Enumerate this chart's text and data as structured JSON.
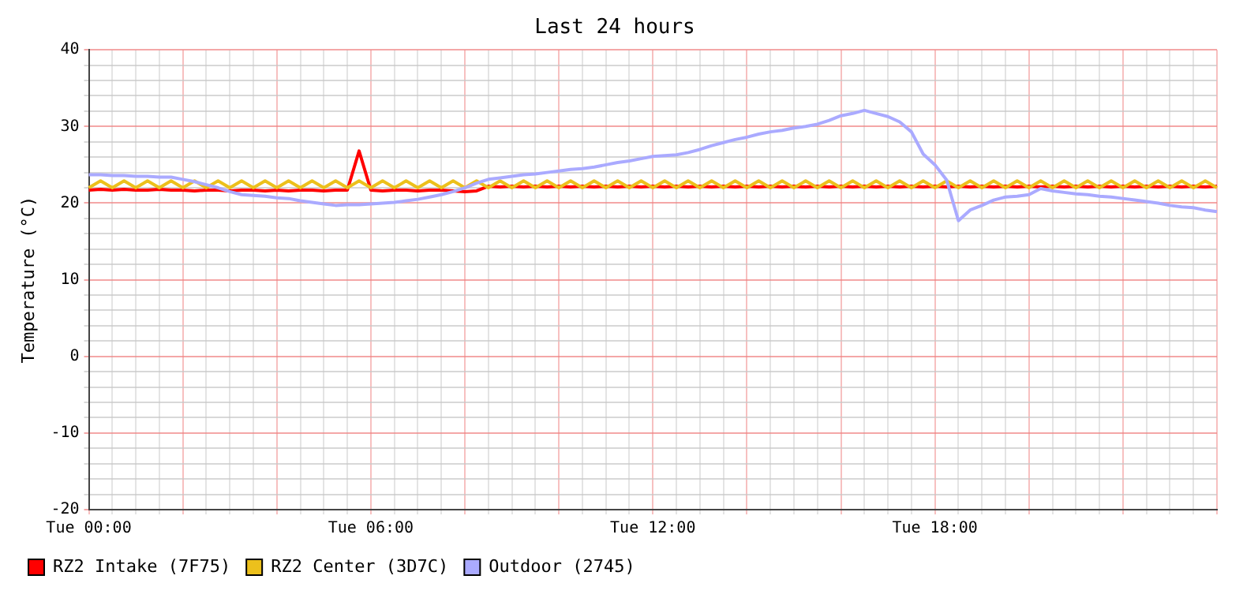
{
  "chart_data": {
    "type": "line",
    "title": "Last 24 hours",
    "ylabel": "Temperature (°C)",
    "categories": [
      "Tue 00:00",
      null,
      null,
      null,
      null,
      null,
      null,
      null,
      null,
      null,
      null,
      null,
      null,
      null,
      null,
      null,
      null,
      null,
      null,
      null,
      null,
      null,
      null,
      null,
      "Tue 06:00",
      null,
      null,
      null,
      null,
      null,
      null,
      null,
      null,
      null,
      null,
      null,
      null,
      null,
      null,
      null,
      null,
      null,
      null,
      null,
      null,
      null,
      null,
      null,
      "Tue 12:00",
      null,
      null,
      null,
      null,
      null,
      null,
      null,
      null,
      null,
      null,
      null,
      null,
      null,
      null,
      null,
      null,
      null,
      null,
      null,
      null,
      null,
      null,
      null,
      "Tue 18:00",
      null,
      null,
      null,
      null,
      null,
      null,
      null,
      null,
      null,
      null,
      null,
      null,
      null,
      null,
      null,
      null,
      null,
      null,
      null,
      null,
      null,
      null,
      null,
      null
    ],
    "ylim": [
      -20,
      40
    ],
    "yticks": [
      -20,
      {
        "value": -18,
        "label": null
      },
      {
        "value": -16,
        "label": null
      },
      {
        "value": -14,
        "label": null
      },
      {
        "value": -12,
        "label": null
      },
      -10,
      {
        "value": -8,
        "label": null
      },
      {
        "value": -6,
        "label": null
      },
      {
        "value": -4,
        "label": null
      },
      {
        "value": -2,
        "label": null
      },
      0,
      {
        "value": 2,
        "label": null
      },
      {
        "value": 4,
        "label": null
      },
      {
        "value": 6,
        "label": null
      },
      {
        "value": 8,
        "label": null
      },
      10,
      {
        "value": 12,
        "label": null
      },
      {
        "value": 14,
        "label": null
      },
      {
        "value": 16,
        "label": null
      },
      {
        "value": 18,
        "label": null
      },
      20,
      {
        "value": 22,
        "label": null
      },
      {
        "value": 24,
        "label": null
      },
      {
        "value": 26,
        "label": null
      },
      {
        "value": 28,
        "label": null
      },
      30,
      {
        "value": 32,
        "label": null
      },
      {
        "value": 34,
        "label": null
      },
      {
        "value": 36,
        "label": null
      },
      {
        "value": 38,
        "label": null
      },
      40
    ],
    "grid": true,
    "legend": "bottom left",
    "marker": "none",
    "line_style": "solid",
    "series": [
      {
        "name": "RZ2 Intake (7F75)",
        "color": "#ff0000",
        "values": [
          21.7,
          21.8,
          21.7,
          21.8,
          21.7,
          21.7,
          21.8,
          21.7,
          21.7,
          21.6,
          21.7,
          21.7,
          21.6,
          21.7,
          21.7,
          21.6,
          21.7,
          21.6,
          21.7,
          21.7,
          21.6,
          21.7,
          21.7,
          26.8,
          21.7,
          21.6,
          21.7,
          21.7,
          21.6,
          21.7,
          21.7,
          21.6,
          21.5,
          21.6,
          22.2,
          22.1,
          22.2,
          22.1,
          22.2,
          22.1,
          22.2,
          22.1,
          22.2,
          22.1,
          22.2,
          22.1,
          22.2,
          22.1,
          22.2,
          22.1,
          22.2,
          22.1,
          22.2,
          22.1,
          22.2,
          22.1,
          22.2,
          22.1,
          22.2,
          22.1,
          22.2,
          22.1,
          22.2,
          22.1,
          22.2,
          22.1,
          22.2,
          22.1,
          22.2,
          22.1,
          22.2,
          22.1,
          22.2,
          22.1,
          22.2,
          22.1,
          22.2,
          22.1,
          22.2,
          22.1,
          22.2,
          22.1,
          22.2,
          22.1,
          22.2,
          22.1,
          22.2,
          22.1,
          22.2,
          22.1,
          22.2,
          22.1,
          22.2,
          22.1,
          22.2,
          22.1,
          22.2
        ]
      },
      {
        "name": "RZ2 Center (3D7C)",
        "color": "#ecc01c",
        "values": [
          22,
          22.9,
          22,
          22.9,
          22,
          22.9,
          22,
          22.9,
          22,
          22.9,
          22,
          22.9,
          22,
          22.9,
          22,
          22.9,
          22,
          22.9,
          22,
          22.9,
          22,
          22.9,
          22,
          22.9,
          22,
          22.9,
          22,
          22.9,
          22,
          22.9,
          22,
          22.9,
          22,
          22.9,
          22,
          22.9,
          22,
          22.9,
          22,
          22.9,
          22,
          22.9,
          22,
          22.9,
          22,
          22.9,
          22,
          22.9,
          22,
          22.9,
          22,
          22.9,
          22,
          22.9,
          22,
          22.9,
          22,
          22.9,
          22,
          22.9,
          22,
          22.9,
          22,
          22.9,
          22,
          22.9,
          22,
          22.9,
          22,
          22.9,
          22,
          22.9,
          22,
          22.9,
          22,
          22.9,
          22,
          22.9,
          22,
          22.9,
          22,
          22.9,
          22,
          22.9,
          22,
          22.9,
          22,
          22.9,
          22,
          22.9,
          22,
          22.9,
          22,
          22.9,
          22,
          22.9,
          22
        ]
      },
      {
        "name": "Outdoor (2745)",
        "color": "#aaaaff",
        "values": [
          23.7,
          23.7,
          23.6,
          23.6,
          23.5,
          23.5,
          23.4,
          23.4,
          23.1,
          22.8,
          22.4,
          22.0,
          21.5,
          21.1,
          21.0,
          20.9,
          20.7,
          20.6,
          20.3,
          20.1,
          19.9,
          19.7,
          19.8,
          19.8,
          19.9,
          20.0,
          20.1,
          20.3,
          20.5,
          20.8,
          21.1,
          21.5,
          22.0,
          22.6,
          23.1,
          23.3,
          23.5,
          23.7,
          23.8,
          24.0,
          24.2,
          24.4,
          24.5,
          24.7,
          25.0,
          25.3,
          25.5,
          25.8,
          26.1,
          26.2,
          26.3,
          26.6,
          27.0,
          27.5,
          27.9,
          28.3,
          28.6,
          29.0,
          29.3,
          29.5,
          29.8,
          30.0,
          30.3,
          30.8,
          31.4,
          31.7,
          32.1,
          31.7,
          31.3,
          30.6,
          29.3,
          26.4,
          25.0,
          23.0,
          17.7,
          19.1,
          19.7,
          20.4,
          20.8,
          20.9,
          21.1,
          21.9,
          21.6,
          21.4,
          21.2,
          21.1,
          20.9,
          20.8,
          20.6,
          20.4,
          20.2,
          20.0,
          19.7,
          19.5,
          19.4,
          19.1,
          18.9
        ]
      }
    ]
  }
}
